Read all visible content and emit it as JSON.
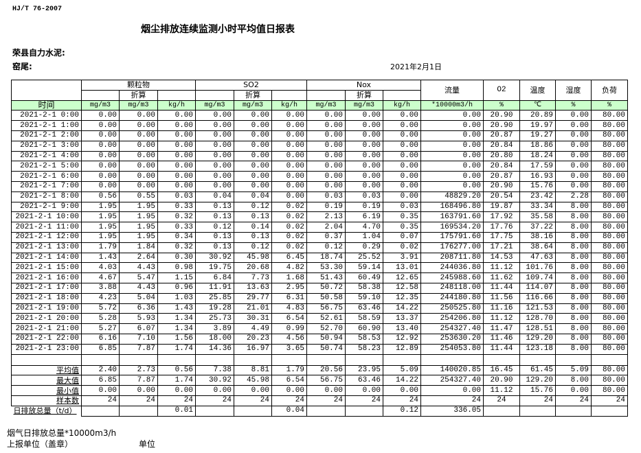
{
  "header": {
    "standard": "HJ/T  76-2007",
    "title": "烟尘排放连续监测小时平均值日报表",
    "company": "荣县自力水泥:",
    "kiln": "窑尾:",
    "date": "2021年2月1日"
  },
  "table": {
    "groups": {
      "particulate": "颗粒物",
      "so2": "SO2",
      "nox": "Nox",
      "converted": "折算",
      "flow": "流量",
      "o2": "O2",
      "temp": "温度",
      "humidity": "湿度",
      "load": "负荷"
    },
    "units": [
      "时间",
      "mg/m3",
      "mg/m3",
      "kg/h",
      "mg/m3",
      "mg/m3",
      "kg/h",
      "mg/m3",
      "mg/m3",
      "kg/h",
      "*10000m3/h",
      "%",
      "℃",
      "%",
      "%"
    ],
    "rows": [
      [
        "2021-2-1 0:00",
        "0.00",
        "0.00",
        "0.00",
        "0.00",
        "0.00",
        "0.00",
        "0.00",
        "0.00",
        "0.00",
        "0.00",
        "20.90",
        "20.89",
        "0.00",
        "80.00"
      ],
      [
        "2021-2-1 1:00",
        "0.00",
        "0.00",
        "0.00",
        "0.00",
        "0.00",
        "0.00",
        "0.00",
        "0.00",
        "0.00",
        "0.00",
        "20.90",
        "19.97",
        "0.00",
        "80.00"
      ],
      [
        "2021-2-1 2:00",
        "0.00",
        "0.00",
        "0.00",
        "0.00",
        "0.00",
        "0.00",
        "0.00",
        "0.00",
        "0.00",
        "0.00",
        "20.87",
        "19.27",
        "0.00",
        "80.00"
      ],
      [
        "2021-2-1 3:00",
        "0.00",
        "0.00",
        "0.00",
        "0.00",
        "0.00",
        "0.00",
        "0.00",
        "0.00",
        "0.00",
        "0.00",
        "20.84",
        "18.86",
        "0.00",
        "80.00"
      ],
      [
        "2021-2-1 4:00",
        "0.00",
        "0.00",
        "0.00",
        "0.00",
        "0.00",
        "0.00",
        "0.00",
        "0.00",
        "0.00",
        "0.00",
        "20.80",
        "18.24",
        "0.00",
        "80.00"
      ],
      [
        "2021-2-1 5:00",
        "0.00",
        "0.00",
        "0.00",
        "0.00",
        "0.00",
        "0.00",
        "0.00",
        "0.00",
        "0.00",
        "0.00",
        "20.84",
        "17.59",
        "0.00",
        "80.00"
      ],
      [
        "2021-2-1 6:00",
        "0.00",
        "0.00",
        "0.00",
        "0.00",
        "0.00",
        "0.00",
        "0.00",
        "0.00",
        "0.00",
        "0.00",
        "20.87",
        "16.93",
        "0.00",
        "80.00"
      ],
      [
        "2021-2-1 7:00",
        "0.00",
        "0.00",
        "0.00",
        "0.00",
        "0.00",
        "0.00",
        "0.00",
        "0.00",
        "0.00",
        "0.00",
        "20.90",
        "15.76",
        "0.00",
        "80.00"
      ],
      [
        "2021-2-1 8:00",
        "0.56",
        "0.55",
        "0.03",
        "0.04",
        "0.04",
        "0.00",
        "0.03",
        "0.03",
        "0.00",
        "48829.20",
        "20.54",
        "23.42",
        "2.28",
        "80.00"
      ],
      [
        "2021-2-1 9:00",
        "1.95",
        "1.95",
        "0.33",
        "0.13",
        "0.12",
        "0.02",
        "0.19",
        "0.19",
        "0.03",
        "168496.80",
        "19.87",
        "33.34",
        "8.00",
        "80.00"
      ],
      [
        "2021-2-1 10:00",
        "1.95",
        "1.95",
        "0.32",
        "0.13",
        "0.13",
        "0.02",
        "2.13",
        "6.19",
        "0.35",
        "163791.60",
        "17.92",
        "35.58",
        "8.00",
        "80.00"
      ],
      [
        "2021-2-1 11:00",
        "1.95",
        "1.95",
        "0.33",
        "0.12",
        "0.14",
        "0.02",
        "2.04",
        "4.70",
        "0.35",
        "169534.20",
        "17.76",
        "37.22",
        "8.00",
        "80.00"
      ],
      [
        "2021-2-1 12:00",
        "1.95",
        "1.95",
        "0.34",
        "0.13",
        "0.13",
        "0.02",
        "0.37",
        "1.04",
        "0.07",
        "175791.60",
        "17.75",
        "38.16",
        "8.00",
        "80.00"
      ],
      [
        "2021-2-1 13:00",
        "1.79",
        "1.84",
        "0.32",
        "0.13",
        "0.12",
        "0.02",
        "0.12",
        "0.29",
        "0.02",
        "176277.00",
        "17.21",
        "38.64",
        "8.00",
        "80.00"
      ],
      [
        "2021-2-1 14:00",
        "1.43",
        "2.64",
        "0.30",
        "30.92",
        "45.98",
        "6.45",
        "18.74",
        "25.52",
        "3.91",
        "208711.80",
        "14.53",
        "47.63",
        "8.00",
        "80.00"
      ],
      [
        "2021-2-1 15:00",
        "4.03",
        "4.43",
        "0.98",
        "19.75",
        "20.68",
        "4.82",
        "53.30",
        "59.14",
        "13.01",
        "244036.80",
        "11.12",
        "101.76",
        "8.00",
        "80.00"
      ],
      [
        "2021-2-1 16:00",
        "4.67",
        "5.47",
        "1.15",
        "6.84",
        "7.73",
        "1.68",
        "51.43",
        "60.49",
        "12.65",
        "245988.60",
        "11.62",
        "109.74",
        "8.00",
        "80.00"
      ],
      [
        "2021-2-1 17:00",
        "3.88",
        "4.43",
        "0.96",
        "11.91",
        "13.63",
        "2.95",
        "50.72",
        "58.38",
        "12.58",
        "248118.00",
        "11.44",
        "114.07",
        "8.00",
        "80.00"
      ],
      [
        "2021-2-1 18:00",
        "4.23",
        "5.04",
        "1.03",
        "25.85",
        "29.77",
        "6.31",
        "50.58",
        "59.10",
        "12.35",
        "244180.80",
        "11.56",
        "116.66",
        "8.00",
        "80.00"
      ],
      [
        "2021-2-1 19:00",
        "5.72",
        "6.36",
        "1.43",
        "19.28",
        "21.01",
        "4.83",
        "56.75",
        "63.46",
        "14.22",
        "250525.80",
        "11.16",
        "121.53",
        "8.00",
        "80.00"
      ],
      [
        "2021-2-1 20:00",
        "5.28",
        "5.93",
        "1.34",
        "25.73",
        "30.31",
        "6.54",
        "52.61",
        "58.59",
        "13.37",
        "254206.80",
        "11.12",
        "128.70",
        "8.00",
        "80.00"
      ],
      [
        "2021-2-1 21:00",
        "5.27",
        "6.07",
        "1.34",
        "3.89",
        "4.49",
        "0.99",
        "52.70",
        "60.90",
        "13.40",
        "254327.40",
        "11.47",
        "128.51",
        "8.00",
        "80.00"
      ],
      [
        "2021-2-1 22:00",
        "6.16",
        "7.10",
        "1.56",
        "18.00",
        "20.23",
        "4.56",
        "50.94",
        "58.53",
        "12.92",
        "253630.20",
        "11.46",
        "129.20",
        "8.00",
        "80.00"
      ],
      [
        "2021-2-1 23:00",
        "6.85",
        "7.87",
        "1.74",
        "14.36",
        "16.97",
        "3.65",
        "50.74",
        "58.23",
        "12.89",
        "254053.80",
        "11.44",
        "123.18",
        "8.00",
        "80.00"
      ]
    ],
    "summary": [
      [
        "平均值",
        "2.40",
        "2.73",
        "0.56",
        "7.38",
        "8.81",
        "1.79",
        "20.56",
        "23.95",
        "5.09",
        "140020.85",
        "16.45",
        "61.45",
        "5.09",
        "80.00"
      ],
      [
        "最大值",
        "6.85",
        "7.87",
        "1.74",
        "30.92",
        "45.98",
        "6.54",
        "56.75",
        "63.46",
        "14.22",
        "254327.40",
        "20.90",
        "129.20",
        "8.00",
        "80.00"
      ],
      [
        "最小值",
        "0.00",
        "0.00",
        "0.00",
        "0.00",
        "0.00",
        "0.00",
        "0.00",
        "0.00",
        "0.00",
        "0.00",
        "11.12",
        "15.76",
        "0.00",
        "80.00"
      ],
      [
        "样本数",
        "24",
        "24",
        "24",
        "24",
        "24",
        "24",
        "24",
        "24",
        "24",
        "24",
        "24",
        "24",
        "24",
        "24"
      ],
      [
        "日排放总量（t/d）",
        "",
        "",
        "0.01",
        "",
        "",
        "0.04",
        "",
        "",
        "0.12",
        "336.05",
        "",
        "",
        "",
        ""
      ]
    ]
  },
  "footer": {
    "flue_total": "烟气日排放总量*10000m3/h",
    "reporter": "上报单位（盖章）",
    "unit": "单位"
  }
}
